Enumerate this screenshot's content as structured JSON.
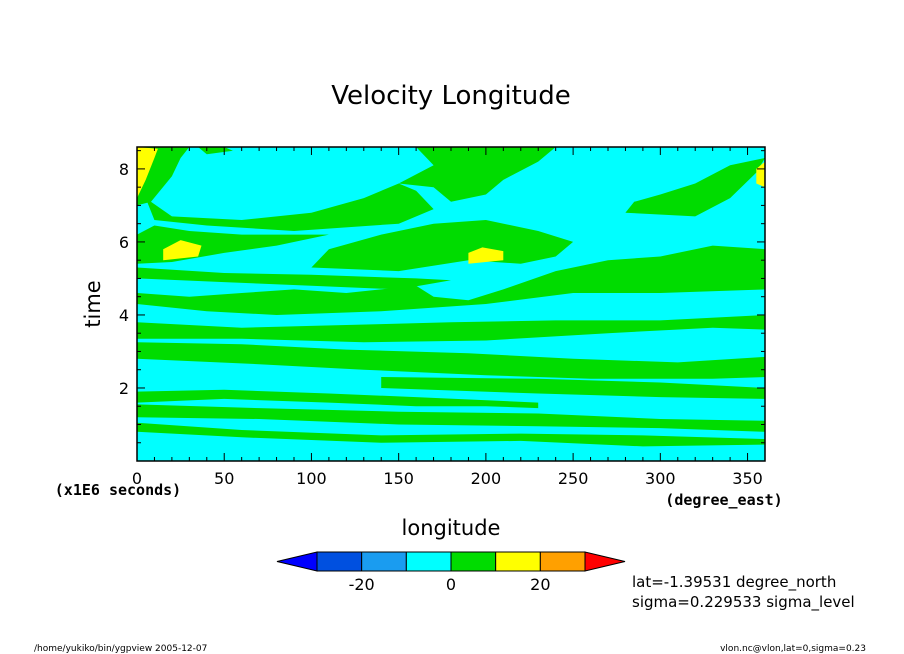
{
  "chart_data": {
    "type": "heatmap",
    "title": "Velocity Longitude",
    "xlabel": "longitude",
    "x_units": "(degree_east)",
    "ylabel": "time",
    "y_units": "(x1E6 seconds)",
    "xlim": [
      0,
      360
    ],
    "ylim": [
      0,
      8.6
    ],
    "x_ticks": [
      0,
      50,
      100,
      150,
      200,
      250,
      300,
      350
    ],
    "y_ticks": [
      2,
      4,
      6,
      8
    ],
    "grid": false,
    "colorbar": {
      "levels": [
        -30,
        -20,
        -10,
        0,
        10,
        20,
        30
      ],
      "tick_labels": [
        "-20",
        "0",
        "20"
      ],
      "tick_values": [
        -20,
        0,
        20
      ],
      "colors": [
        "#0000ff",
        "#0050e0",
        "#1a9cf0",
        "#00ffff",
        "#00dc00",
        "#ffff00",
        "#ffa000",
        "#ff0000"
      ],
      "extend": "both"
    },
    "background_class": "#00ffff",
    "bands": [
      {
        "class": "#00dc00",
        "points": [
          [
            0,
            0.8
          ],
          [
            60,
            0.65
          ],
          [
            140,
            0.5
          ],
          [
            220,
            0.55
          ],
          [
            290,
            0.4
          ],
          [
            360,
            0.45
          ],
          [
            360,
            0.6
          ],
          [
            290,
            0.7
          ],
          [
            220,
            0.75
          ],
          [
            140,
            0.7
          ],
          [
            60,
            0.85
          ],
          [
            0,
            1.05
          ]
        ]
      },
      {
        "class": "#00dc00",
        "points": [
          [
            0,
            1.2
          ],
          [
            70,
            1.15
          ],
          [
            150,
            1.0
          ],
          [
            230,
            0.95
          ],
          [
            300,
            0.9
          ],
          [
            360,
            0.8
          ],
          [
            360,
            1.1
          ],
          [
            300,
            1.15
          ],
          [
            230,
            1.3
          ],
          [
            150,
            1.35
          ],
          [
            70,
            1.45
          ],
          [
            0,
            1.55
          ]
        ]
      },
      {
        "class": "#00dc00",
        "points": [
          [
            0,
            1.6
          ],
          [
            50,
            1.7
          ],
          [
            110,
            1.6
          ],
          [
            160,
            1.5
          ],
          [
            200,
            1.5
          ],
          [
            230,
            1.45
          ],
          [
            230,
            1.6
          ],
          [
            160,
            1.75
          ],
          [
            110,
            1.85
          ],
          [
            50,
            1.95
          ],
          [
            0,
            1.9
          ]
        ]
      },
      {
        "class": "#00dc00",
        "points": [
          [
            140,
            2.0
          ],
          [
            230,
            1.85
          ],
          [
            300,
            1.75
          ],
          [
            360,
            1.7
          ],
          [
            360,
            2.0
          ],
          [
            300,
            2.15
          ],
          [
            230,
            2.25
          ],
          [
            140,
            2.3
          ]
        ]
      },
      {
        "class": "#00dc00",
        "points": [
          [
            0,
            2.8
          ],
          [
            70,
            2.65
          ],
          [
            130,
            2.5
          ],
          [
            200,
            2.35
          ],
          [
            260,
            2.25
          ],
          [
            330,
            2.25
          ],
          [
            360,
            2.3
          ],
          [
            360,
            2.85
          ],
          [
            310,
            2.7
          ],
          [
            250,
            2.8
          ],
          [
            190,
            2.95
          ],
          [
            120,
            3.05
          ],
          [
            60,
            3.2
          ],
          [
            0,
            3.25
          ]
        ]
      },
      {
        "class": "#00dc00",
        "points": [
          [
            0,
            3.35
          ],
          [
            60,
            3.35
          ],
          [
            130,
            3.25
          ],
          [
            200,
            3.3
          ],
          [
            270,
            3.5
          ],
          [
            330,
            3.65
          ],
          [
            360,
            3.6
          ],
          [
            360,
            4.0
          ],
          [
            300,
            3.85
          ],
          [
            240,
            3.85
          ],
          [
            180,
            3.8
          ],
          [
            140,
            3.75
          ],
          [
            100,
            3.7
          ],
          [
            60,
            3.65
          ],
          [
            0,
            3.8
          ]
        ]
      },
      {
        "class": "#00dc00",
        "points": [
          [
            0,
            4.3
          ],
          [
            40,
            4.1
          ],
          [
            80,
            4.0
          ],
          [
            140,
            4.1
          ],
          [
            200,
            4.3
          ],
          [
            250,
            4.6
          ],
          [
            300,
            4.6
          ],
          [
            360,
            4.7
          ],
          [
            360,
            5.8
          ],
          [
            330,
            5.9
          ],
          [
            300,
            5.6
          ],
          [
            270,
            5.5
          ],
          [
            240,
            5.2
          ],
          [
            210,
            4.7
          ],
          [
            190,
            4.4
          ],
          [
            170,
            4.5
          ],
          [
            160,
            4.8
          ],
          [
            120,
            4.6
          ],
          [
            90,
            4.7
          ],
          [
            60,
            4.6
          ],
          [
            30,
            4.5
          ],
          [
            0,
            4.6
          ]
        ]
      },
      {
        "class": "#00dc00",
        "points": [
          [
            0,
            5.0
          ],
          [
            50,
            4.9
          ],
          [
            100,
            4.8
          ],
          [
            150,
            4.7
          ],
          [
            180,
            4.95
          ],
          [
            160,
            5.0
          ],
          [
            100,
            5.1
          ],
          [
            50,
            5.15
          ],
          [
            0,
            5.3
          ]
        ]
      },
      {
        "class": "#00dc00",
        "points": [
          [
            0,
            5.4
          ],
          [
            20,
            5.45
          ],
          [
            50,
            5.7
          ],
          [
            80,
            5.9
          ],
          [
            110,
            6.2
          ],
          [
            60,
            6.2
          ],
          [
            30,
            6.3
          ],
          [
            10,
            6.45
          ],
          [
            0,
            6.2
          ]
        ]
      },
      {
        "class": "#00dc00",
        "points": [
          [
            100,
            5.3
          ],
          [
            150,
            5.2
          ],
          [
            190,
            5.5
          ],
          [
            220,
            5.4
          ],
          [
            240,
            5.6
          ],
          [
            250,
            6.0
          ],
          [
            230,
            6.3
          ],
          [
            200,
            6.6
          ],
          [
            170,
            6.5
          ],
          [
            140,
            6.2
          ],
          [
            110,
            5.8
          ]
        ]
      },
      {
        "class": "#00dc00",
        "points": [
          [
            90,
            6.3
          ],
          [
            150,
            6.5
          ],
          [
            170,
            6.9
          ],
          [
            160,
            7.4
          ],
          [
            150,
            7.6
          ],
          [
            130,
            7.2
          ],
          [
            100,
            6.8
          ],
          [
            60,
            6.6
          ],
          [
            20,
            6.7
          ],
          [
            5,
            7.2
          ],
          [
            10,
            6.6
          ],
          [
            40,
            6.45
          ]
        ]
      },
      {
        "class": "#00dc00",
        "points": [
          [
            150,
            7.6
          ],
          [
            170,
            7.5
          ],
          [
            180,
            7.1
          ],
          [
            200,
            7.3
          ],
          [
            210,
            7.7
          ],
          [
            230,
            8.2
          ],
          [
            240,
            8.6
          ],
          [
            160,
            8.6
          ],
          [
            170,
            8.1
          ]
        ]
      },
      {
        "class": "#00dc00",
        "points": [
          [
            280,
            6.8
          ],
          [
            320,
            6.7
          ],
          [
            340,
            7.2
          ],
          [
            355,
            7.9
          ],
          [
            360,
            8.3
          ],
          [
            340,
            8.1
          ],
          [
            320,
            7.6
          ],
          [
            300,
            7.3
          ],
          [
            285,
            7.1
          ]
        ]
      },
      {
        "class": "#00dc00",
        "points": [
          [
            0,
            7.0
          ],
          [
            8,
            7.1
          ],
          [
            20,
            7.8
          ],
          [
            25,
            8.3
          ],
          [
            30,
            8.6
          ],
          [
            0,
            8.6
          ]
        ]
      },
      {
        "class": "#00dc00",
        "points": [
          [
            40,
            8.4
          ],
          [
            55,
            8.5
          ],
          [
            50,
            8.6
          ],
          [
            35,
            8.6
          ]
        ]
      },
      {
        "class": "#ffff00",
        "points": [
          [
            0,
            7.2
          ],
          [
            5,
            7.7
          ],
          [
            10,
            8.3
          ],
          [
            12,
            8.55
          ],
          [
            0,
            8.6
          ]
        ]
      },
      {
        "class": "#ffff00",
        "points": [
          [
            15,
            5.5
          ],
          [
            35,
            5.6
          ],
          [
            37,
            5.9
          ],
          [
            25,
            6.05
          ],
          [
            15,
            5.8
          ]
        ]
      },
      {
        "class": "#ffff00",
        "points": [
          [
            190,
            5.4
          ],
          [
            210,
            5.5
          ],
          [
            210,
            5.75
          ],
          [
            198,
            5.85
          ],
          [
            190,
            5.7
          ]
        ]
      },
      {
        "class": "#ffff00",
        "points": [
          [
            355,
            7.6
          ],
          [
            360,
            7.5
          ],
          [
            360,
            8.2
          ],
          [
            355,
            8.0
          ]
        ]
      }
    ]
  },
  "annotations": {
    "lat": "lat=-1.39531 degree_north",
    "sigma": "sigma=0.229533 sigma_level",
    "footer_left": "/home/yukiko/bin/ygpview  2005-12-07",
    "footer_right": "vlon.nc@vlon,lat=0,sigma=0.23"
  }
}
